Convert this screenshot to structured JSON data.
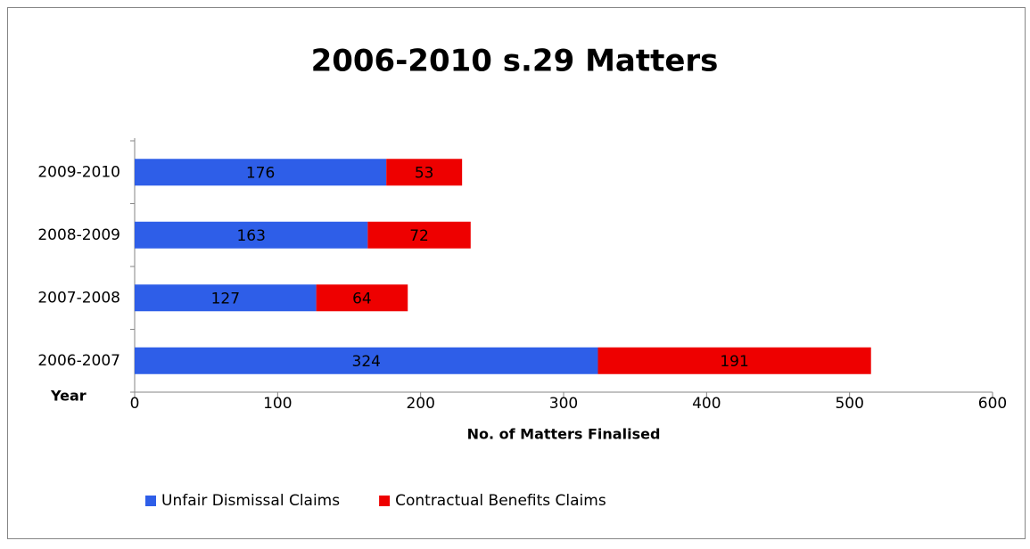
{
  "chart_data": {
    "type": "bar",
    "orientation": "horizontal",
    "stacked": true,
    "title": "2006-2010 s.29 Matters",
    "xlabel": "No. of Matters Finalised",
    "ylabel": "Year",
    "categories": [
      "2006-2007",
      "2007-2008",
      "2008-2009",
      "2009-2010"
    ],
    "series": [
      {
        "name": "Unfair Dismissal Claims",
        "color": "#2e5ee8",
        "values": [
          324,
          127,
          163,
          176
        ]
      },
      {
        "name": "Contractual Benefits Claims",
        "color": "#ee0000",
        "values": [
          191,
          64,
          72,
          53
        ]
      }
    ],
    "xlim": [
      0,
      600
    ],
    "xticks": [
      0,
      100,
      200,
      300,
      400,
      500,
      600
    ],
    "grid": false,
    "legend": "bottom"
  }
}
